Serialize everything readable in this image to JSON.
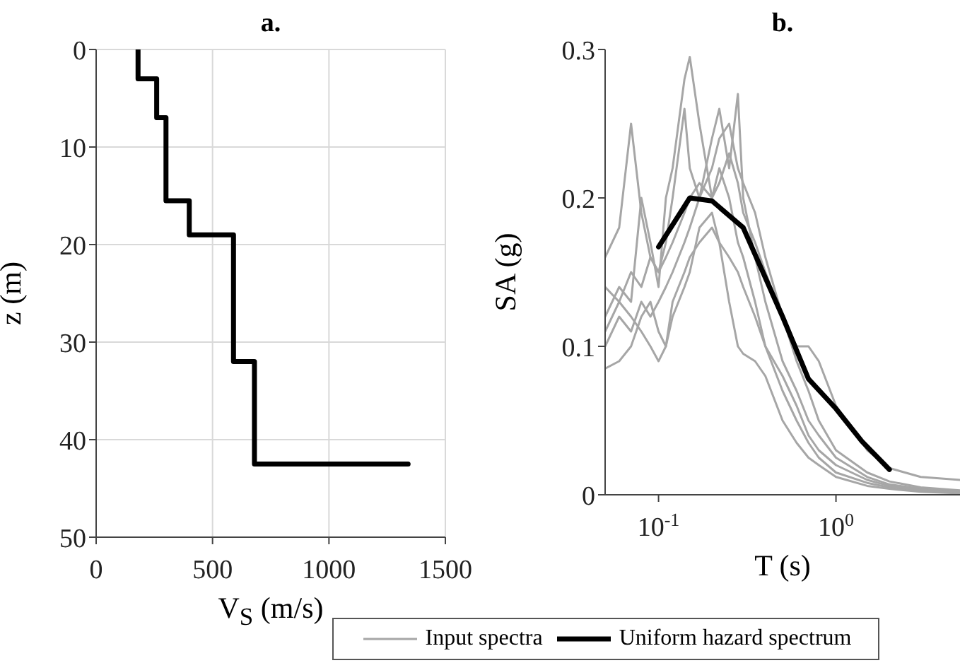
{
  "chart_data": [
    {
      "type": "line",
      "title": "a.",
      "xlabel": "V$_{S}$ (m/s)",
      "ylabel": "z (m)",
      "xlim": [
        0,
        1500
      ],
      "xticks": [
        0,
        500,
        1000,
        1500
      ],
      "ylim": [
        50,
        0
      ],
      "yticks": [
        0,
        10,
        20,
        30,
        40,
        50
      ],
      "grid": true,
      "line_style": "solid",
      "series": [
        {
          "color": "#000000",
          "x": [
            180,
            180,
            260,
            260,
            300,
            300,
            400,
            400,
            590,
            590,
            680,
            680,
            1340
          ],
          "values": [
            0,
            3,
            3,
            7,
            7,
            15.5,
            15.5,
            19,
            19,
            32,
            32,
            42.5,
            42.5
          ]
        }
      ]
    },
    {
      "type": "line",
      "title": "b.",
      "xlabel": "T (s)",
      "ylabel": "SA (g)",
      "log": "x",
      "xlim": [
        0.05,
        5
      ],
      "xticks": [
        {
          "value": 0.1,
          "label": "10$^{-1}$"
        },
        {
          "value": 1,
          "label": "10$^{0}$"
        }
      ],
      "ylim": [
        0,
        0.3
      ],
      "yticks": [
        0,
        0.1,
        0.2,
        0.3
      ],
      "legend": "bottom",
      "line_style": "solid",
      "x": [
        0.05,
        0.06,
        0.07,
        0.08,
        0.09,
        0.1,
        0.11,
        0.12,
        0.14,
        0.15,
        0.17,
        0.2,
        0.22,
        0.25,
        0.28,
        0.3,
        0.35,
        0.4,
        0.5,
        0.6,
        0.7,
        0.8,
        1,
        1.5,
        2,
        3,
        5
      ],
      "series": [
        {
          "name": "Input spectra",
          "color": "#a6a6a6",
          "values": [
            0.12,
            0.14,
            0.13,
            0.2,
            0.17,
            0.14,
            0.2,
            0.22,
            0.28,
            0.295,
            0.25,
            0.2,
            0.22,
            0.2,
            0.17,
            0.16,
            0.13,
            0.1,
            0.07,
            0.05,
            0.035,
            0.025,
            0.015,
            0.008,
            0.005,
            0.003,
            0.002
          ]
        },
        {
          "color": "#a6a6a6",
          "values": [
            0.16,
            0.18,
            0.25,
            0.19,
            0.16,
            0.15,
            0.17,
            0.2,
            0.26,
            0.22,
            0.2,
            0.24,
            0.26,
            0.22,
            0.27,
            0.2,
            0.16,
            0.13,
            0.09,
            0.07,
            0.05,
            0.04,
            0.025,
            0.012,
            0.007,
            0.004,
            0.002
          ]
        },
        {
          "color": "#a6a6a6",
          "values": [
            0.085,
            0.09,
            0.1,
            0.12,
            0.13,
            0.11,
            0.1,
            0.12,
            0.14,
            0.15,
            0.18,
            0.19,
            0.17,
            0.13,
            0.1,
            0.095,
            0.09,
            0.08,
            0.05,
            0.035,
            0.025,
            0.02,
            0.012,
            0.006,
            0.004,
            0.002,
            0.001
          ]
        },
        {
          "color": "#a6a6a6",
          "values": [
            0.11,
            0.13,
            0.15,
            0.14,
            0.16,
            0.15,
            0.16,
            0.17,
            0.19,
            0.2,
            0.21,
            0.2,
            0.21,
            0.23,
            0.21,
            0.19,
            0.17,
            0.15,
            0.12,
            0.1,
            0.1,
            0.09,
            0.06,
            0.03,
            0.018,
            0.012,
            0.01
          ]
        },
        {
          "color": "#a6a6a6",
          "values": [
            0.14,
            0.13,
            0.12,
            0.11,
            0.1,
            0.09,
            0.1,
            0.13,
            0.15,
            0.16,
            0.17,
            0.18,
            0.17,
            0.16,
            0.15,
            0.14,
            0.12,
            0.1,
            0.08,
            0.06,
            0.04,
            0.03,
            0.02,
            0.01,
            0.006,
            0.003,
            0.002
          ]
        },
        {
          "color": "#a6a6a6",
          "values": [
            0.1,
            0.12,
            0.11,
            0.13,
            0.12,
            0.13,
            0.14,
            0.15,
            0.17,
            0.18,
            0.2,
            0.22,
            0.24,
            0.25,
            0.22,
            0.21,
            0.19,
            0.16,
            0.12,
            0.09,
            0.07,
            0.05,
            0.03,
            0.015,
            0.009,
            0.005,
            0.003
          ]
        },
        {
          "name": "Uniform hazard spectrum",
          "color": "#000000",
          "x": [
            0.1,
            0.15,
            0.2,
            0.3,
            0.5,
            0.7,
            1,
            1.4,
            2
          ],
          "values": [
            0.167,
            0.2,
            0.198,
            0.18,
            0.12,
            0.078,
            0.058,
            0.036,
            0.017
          ]
        }
      ]
    }
  ]
}
